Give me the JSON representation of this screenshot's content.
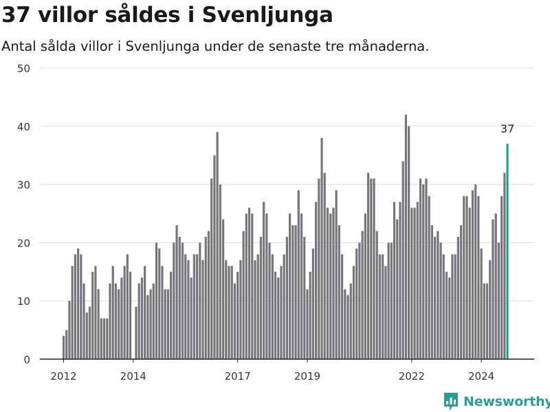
{
  "title": "37 villor såldes i Svenljunga",
  "subtitle": "Antal sålda villor i Svenljunga under de senaste tre månaderna.",
  "brand": "Newsworthy",
  "colors": {
    "bar": "#76757b",
    "highlight": "#2a9d94",
    "grid": "#dddddd",
    "axis": "#222222",
    "brand": "#2a9d94"
  },
  "chart_data": {
    "type": "bar",
    "x_start": "2012-01",
    "x_step": "1 month",
    "x_ticks": [
      "2012",
      "2014",
      "2017",
      "2019",
      "2022",
      "2024"
    ],
    "ylim": [
      0,
      50
    ],
    "y_ticks": [
      0,
      10,
      20,
      30,
      40,
      50
    ],
    "grid": true,
    "annotation": "37",
    "values": [
      4,
      5,
      10,
      16,
      18,
      19,
      18,
      13,
      8,
      9,
      15,
      16,
      12,
      7,
      7,
      7,
      13,
      16,
      13,
      12,
      14,
      16,
      18,
      15,
      0,
      9,
      13,
      14,
      16,
      11,
      12,
      13,
      20,
      19,
      16,
      12,
      12,
      15,
      20,
      23,
      21,
      20,
      18,
      17,
      14,
      18,
      18,
      20,
      17,
      21,
      22,
      31,
      35,
      39,
      30,
      24,
      17,
      16,
      16,
      13,
      15,
      17,
      22,
      25,
      26,
      25,
      17,
      18,
      21,
      27,
      25,
      20,
      18,
      15,
      14,
      16,
      18,
      21,
      25,
      23,
      23,
      29,
      25,
      21,
      12,
      15,
      19,
      27,
      31,
      38,
      32,
      26,
      25,
      26,
      29,
      23,
      18,
      12,
      11,
      13,
      16,
      19,
      20,
      22,
      25,
      32,
      31,
      31,
      22,
      18,
      18,
      16,
      20,
      20,
      27,
      24,
      27,
      34,
      42,
      40,
      26,
      26,
      27,
      31,
      30,
      31,
      28,
      23,
      21,
      22,
      20,
      18,
      15,
      14,
      18,
      18,
      21,
      23,
      28,
      28,
      26,
      29,
      30,
      28,
      19,
      13,
      13,
      17,
      24,
      25,
      20,
      28,
      32,
      37
    ]
  }
}
